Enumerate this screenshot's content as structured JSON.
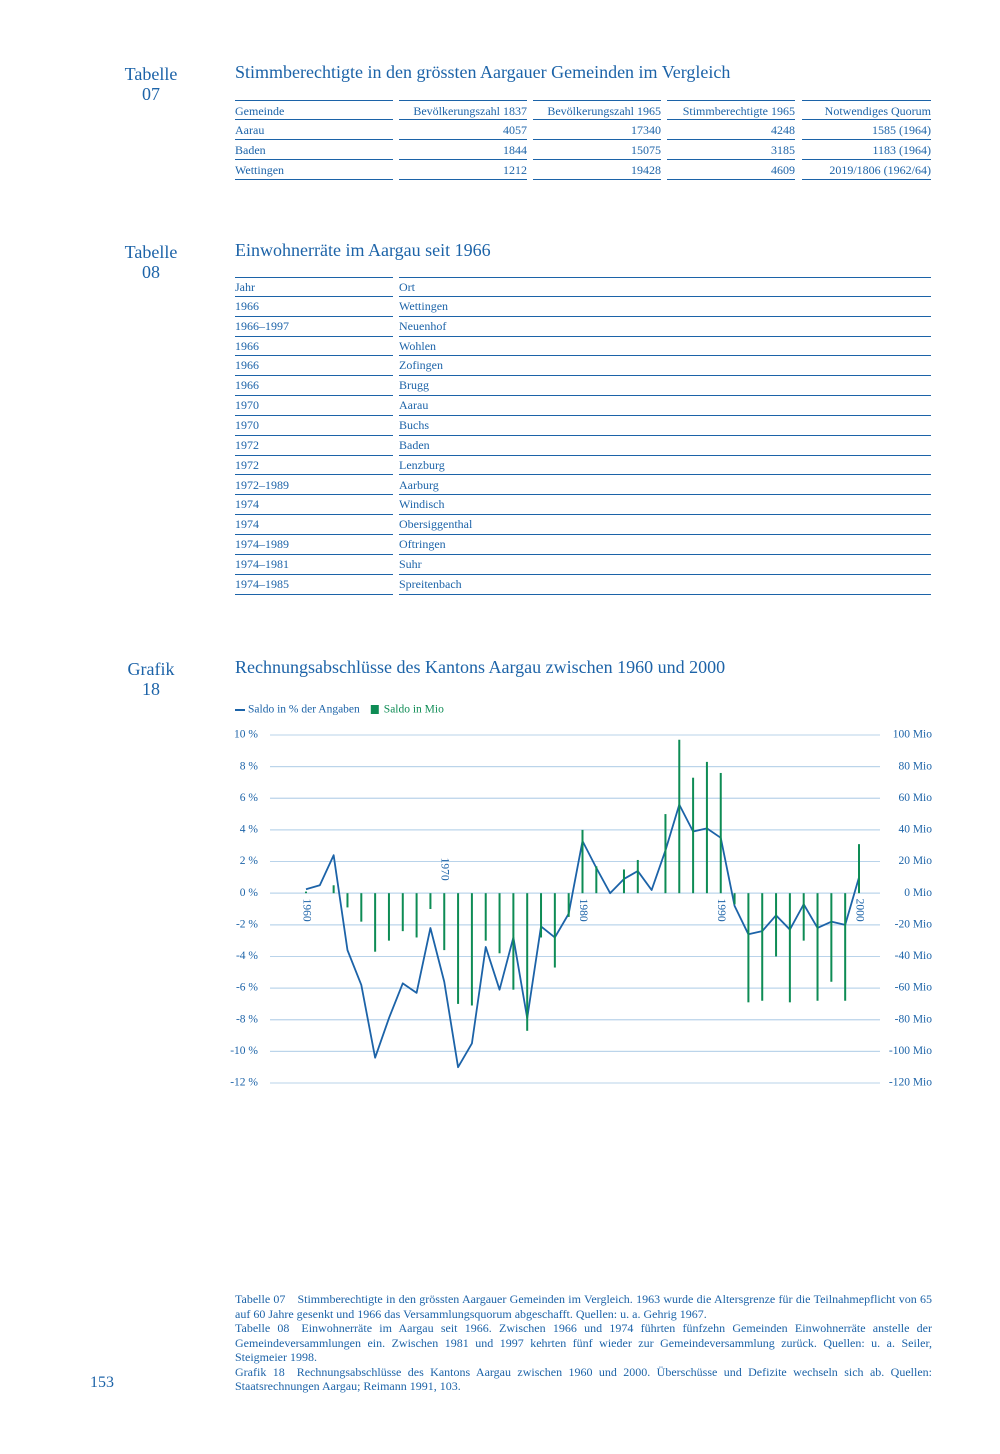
{
  "table07": {
    "label": "Tabelle",
    "number": "07",
    "title": "Stimmberechtigte in den grössten Aargauer Gemeinden im Vergleich",
    "headers": [
      "Gemeinde",
      "Bevölkerungszahl 1837",
      "Bevölkerungszahl 1965",
      "Stimmberechtigte 1965",
      "Notwendiges Quorum"
    ],
    "rows": [
      [
        "Aarau",
        4057,
        17340,
        4248,
        "1585 (1964)"
      ],
      [
        "Baden",
        1844,
        15075,
        3185,
        "1183 (1964)"
      ],
      [
        "Wettingen",
        1212,
        19428,
        4609,
        "2019/1806 (1962/64)"
      ]
    ]
  },
  "table08": {
    "label": "Tabelle",
    "number": "08",
    "title": "Einwohnerräte im Aargau seit 1966",
    "headers": [
      "Jahr",
      "Ort"
    ],
    "rows": [
      [
        "1966",
        "Wettingen"
      ],
      [
        "1966–1997",
        "Neuenhof"
      ],
      [
        "1966",
        "Wohlen"
      ],
      [
        "1966",
        "Zofingen"
      ],
      [
        "1966",
        "Brugg"
      ],
      [
        "1970",
        "Aarau"
      ],
      [
        "1970",
        "Buchs"
      ],
      [
        "1972",
        "Baden"
      ],
      [
        "1972",
        "Lenzburg"
      ],
      [
        "1972–1989",
        "Aarburg"
      ],
      [
        "1974",
        "Windisch"
      ],
      [
        "1974",
        "Obersiggenthal"
      ],
      [
        "1974–1989",
        "Oftringen"
      ],
      [
        "1974–1981",
        "Suhr"
      ],
      [
        "1974–1985",
        "Spreitenbach"
      ]
    ]
  },
  "grafik18": {
    "label": "Grafik",
    "number": "18"
  },
  "chart_data": {
    "type": "combo",
    "title": "Rechnungsabschlüsse des Kantons Aargau zwischen 1960 und 2000",
    "x": [
      1960,
      1961,
      1962,
      1963,
      1964,
      1965,
      1966,
      1967,
      1968,
      1969,
      1970,
      1971,
      1972,
      1973,
      1974,
      1975,
      1976,
      1977,
      1978,
      1979,
      1980,
      1981,
      1982,
      1983,
      1984,
      1985,
      1986,
      1987,
      1988,
      1989,
      1990,
      1991,
      1992,
      1993,
      1994,
      1995,
      1996,
      1997,
      1998,
      1999,
      2000
    ],
    "xlim": [
      1960,
      2000
    ],
    "xticks": [
      1960,
      1970,
      1980,
      1990,
      2000
    ],
    "series": [
      {
        "name": "Saldo in % der Angaben",
        "type": "line",
        "color": "#1c63a8",
        "axis": "y",
        "values": [
          0.25,
          0.5,
          2.4,
          -3.6,
          -5.8,
          -10.4,
          -7.9,
          -5.7,
          -6.3,
          -2.2,
          -5.6,
          -11.0,
          -9.5,
          -3.4,
          -6.1,
          -2.8,
          -7.9,
          -2.1,
          -2.8,
          -1.3,
          3.3,
          1.6,
          0,
          0.9,
          1.4,
          0.2,
          2.7,
          5.6,
          3.9,
          4.1,
          3.5,
          -0.8,
          -2.6,
          -2.4,
          -1.4,
          -2.3,
          -0.7,
          -2.2,
          -1.8,
          -2.0,
          1.0
        ]
      },
      {
        "name": "Saldo in Mio",
        "type": "bar",
        "color": "#0e8c55",
        "axis": "y2",
        "values": [
          1,
          0,
          5,
          -9,
          -18,
          -37,
          -30,
          -24,
          -28,
          -10,
          -36,
          -70,
          -71,
          -30,
          -38,
          -61,
          -87,
          -28,
          -47,
          -15,
          40,
          17,
          0,
          15,
          21,
          0,
          50,
          97,
          73,
          83,
          76,
          -7,
          -69,
          -68,
          -40,
          -69,
          -30,
          -68,
          -56,
          -68,
          31
        ]
      }
    ],
    "ylim": [
      -12,
      10
    ],
    "yticks": [
      {
        "value": 10,
        "label": "10 %"
      },
      {
        "value": 8,
        "label": "8 %"
      },
      {
        "value": 6,
        "label": "6 %"
      },
      {
        "value": 4,
        "label": "4 %"
      },
      {
        "value": 2,
        "label": "2 %"
      },
      {
        "value": 0,
        "label": "0 %"
      },
      {
        "value": -2,
        "label": "-2 %"
      },
      {
        "value": -4,
        "label": "-4 %"
      },
      {
        "value": -6,
        "label": "-6 %"
      },
      {
        "value": -8,
        "label": "-8 %"
      },
      {
        "value": -10,
        "label": "-10 %"
      },
      {
        "value": -12,
        "label": "-12 %"
      }
    ],
    "y2lim": [
      -120,
      100
    ],
    "y2ticks": [
      {
        "value": 100,
        "label": "100 Mio"
      },
      {
        "value": 80,
        "label": "80 Mio"
      },
      {
        "value": 60,
        "label": "60 Mio"
      },
      {
        "value": 40,
        "label": "40 Mio"
      },
      {
        "value": 20,
        "label": "20 Mio"
      },
      {
        "value": 0,
        "label": "0 Mio"
      },
      {
        "value": -20,
        "label": "-20 Mio"
      },
      {
        "value": -40,
        "label": "-40 Mio"
      },
      {
        "value": -60,
        "label": "-60 Mio"
      },
      {
        "value": -80,
        "label": "-80 Mio"
      },
      {
        "value": -100,
        "label": "-100 Mio"
      },
      {
        "value": -120,
        "label": "-120 Mio"
      }
    ],
    "grid": true
  },
  "notes": [
    {
      "label": "Tabelle 07",
      "text": "Stimmberechtigte in den grössten Aargauer Gemeinden im Vergleich. 1963 wurde die Altersgrenze für die Teilnahmepflicht von 65 auf 60 Jahre gesenkt und 1966 das Versammlungsquorum abgeschafft. Quellen: u. a. Gehrig 1967."
    },
    {
      "label": "Tabelle 08",
      "text": "Einwohnerräte im Aargau seit 1966. Zwischen 1966 und 1974 führten fünfzehn Gemeinden Einwohnerräte anstelle der Gemeindeversammlungen ein. Zwischen 1981 und 1997 kehrten fünf wieder zur Gemeindeversammlung zurück. Quellen: u. a. Seiler, Steigmeier 1998."
    },
    {
      "label": "Grafik 18",
      "text": "Rechnungsabschlüsse des Kantons Aargau zwischen 1960 und 2000. Überschüsse und Defizite wechseln sich ab. Quellen: Staatsrechnungen Aargau; Reimann 1991, 103."
    }
  ],
  "page_number": "153"
}
